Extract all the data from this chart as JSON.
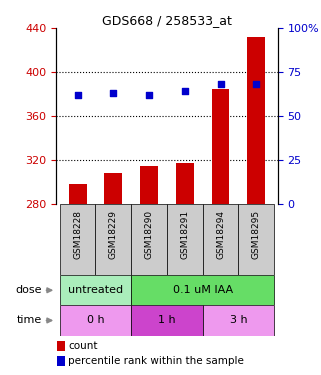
{
  "title": "GDS668 / 258533_at",
  "samples": [
    "GSM18228",
    "GSM18229",
    "GSM18290",
    "GSM18291",
    "GSM18294",
    "GSM18295"
  ],
  "bar_values": [
    298,
    308,
    314,
    317,
    385,
    432
  ],
  "bar_bottom": 280,
  "percentile_values": [
    62,
    63,
    62,
    64,
    68,
    68
  ],
  "left_ylim": [
    280,
    440
  ],
  "right_ylim": [
    0,
    100
  ],
  "left_yticks": [
    280,
    320,
    360,
    400,
    440
  ],
  "right_yticks": [
    0,
    25,
    50,
    75,
    100
  ],
  "right_yticklabels": [
    "0",
    "25",
    "50",
    "75",
    "100%"
  ],
  "bar_color": "#cc0000",
  "dot_color": "#0000cc",
  "sample_box_color": "#cccccc",
  "dose_labels": [
    {
      "text": "untreated",
      "start": 0,
      "end": 2,
      "color": "#aaeebb"
    },
    {
      "text": "0.1 uM IAA",
      "start": 2,
      "end": 6,
      "color": "#66dd66"
    }
  ],
  "time_labels": [
    {
      "text": "0 h",
      "start": 0,
      "end": 2,
      "color": "#ee99ee"
    },
    {
      "text": "1 h",
      "start": 2,
      "end": 4,
      "color": "#cc44cc"
    },
    {
      "text": "3 h",
      "start": 4,
      "end": 6,
      "color": "#ee99ee"
    }
  ],
  "dose_arrow_label": "dose",
  "time_arrow_label": "time",
  "legend_count_label": "count",
  "legend_percentile_label": "percentile rank within the sample",
  "tick_label_color_left": "#cc0000",
  "tick_label_color_right": "#0000cc",
  "gridline_ticks": [
    320,
    360,
    400
  ]
}
